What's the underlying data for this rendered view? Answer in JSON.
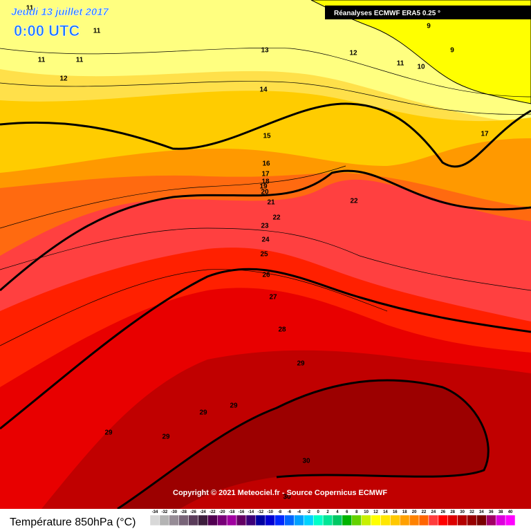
{
  "header": {
    "date": "Jeudi 13 juillet 2017",
    "time": "0:00 UTC"
  },
  "source_box": "Réanalyses ECMWF ERA5 0.25 °",
  "copyright": "Copyright © 2021 Meteociel.fr - Source Copernicus ECMWF",
  "contour_labels": [
    11,
    11,
    11,
    11,
    12,
    13,
    14,
    15,
    16,
    17,
    18,
    19,
    20,
    21,
    22,
    22,
    23,
    24,
    25,
    26,
    27,
    28,
    29,
    29,
    29,
    29,
    29,
    30,
    30,
    9,
    9,
    12,
    11,
    10,
    17
  ],
  "legend": {
    "title": "Température 850hPa (°C)",
    "labels": [
      -34,
      -32,
      -30,
      -28,
      -26,
      -24,
      -22,
      -20,
      -18,
      -16,
      -14,
      -12,
      -10,
      -8,
      -6,
      -4,
      -2,
      0,
      2,
      4,
      6,
      8,
      10,
      12,
      14,
      16,
      18,
      20,
      22,
      24,
      26,
      28,
      30,
      32,
      34,
      36,
      38,
      40
    ],
    "colors": [
      "#d8d8d8",
      "#b4b4b4",
      "#968c96",
      "#786478",
      "#5a3c5a",
      "#3c1e3c",
      "#500050",
      "#780078",
      "#a000a0",
      "#640064",
      "#3c0078",
      "#0000a0",
      "#0000d2",
      "#0028ff",
      "#0064ff",
      "#00a0ff",
      "#00d2ff",
      "#00ffc8",
      "#00e696",
      "#00c864",
      "#00b400",
      "#64d200",
      "#c8f000",
      "#ffff00",
      "#ffe600",
      "#ffc800",
      "#ffa000",
      "#ff8200",
      "#ff6400",
      "#ff3c3c",
      "#ff0000",
      "#dc0000",
      "#b40000",
      "#960000",
      "#780000",
      "#a00064",
      "#dc00dc",
      "#ff00ff"
    ]
  }
}
